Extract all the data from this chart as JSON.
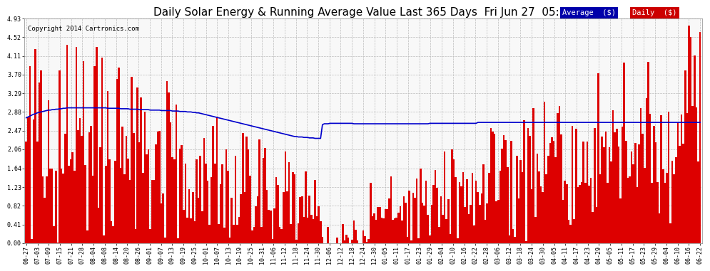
{
  "title": "Daily Solar Energy & Running Average Value Last 365 Days  Fri Jun 27  05:32",
  "copyright": "Copyright 2014 Cartronics.com",
  "legend_label_avg": "Average  ($)",
  "legend_label_daily": "Daily  ($)",
  "bar_color": "#dd0000",
  "avg_color": "#0000cc",
  "legend_avg_bg": "#0000aa",
  "legend_daily_bg": "#cc0000",
  "background_color": "#ffffff",
  "plot_bg_color": "#f8f8f8",
  "grid_color": "#bbbbbb",
  "ylim": [
    0.0,
    4.93
  ],
  "yticks": [
    0.0,
    0.41,
    0.82,
    1.23,
    1.64,
    2.06,
    2.47,
    2.88,
    3.29,
    3.7,
    4.11,
    4.52,
    4.93
  ],
  "xtick_labels": [
    "06-27",
    "07-03",
    "07-09",
    "07-15",
    "07-21",
    "07-28",
    "08-04",
    "08-08",
    "08-14",
    "08-20",
    "08-26",
    "09-01",
    "09-07",
    "09-13",
    "09-19",
    "09-25",
    "10-01",
    "10-07",
    "10-13",
    "10-19",
    "10-25",
    "10-31",
    "11-06",
    "11-12",
    "11-18",
    "11-24",
    "11-30",
    "12-06",
    "12-12",
    "12-18",
    "12-24",
    "12-30",
    "01-05",
    "01-11",
    "01-17",
    "01-23",
    "01-29",
    "02-04",
    "02-10",
    "02-16",
    "02-22",
    "02-28",
    "03-06",
    "03-12",
    "03-18",
    "03-24",
    "03-30",
    "04-05",
    "04-11",
    "04-17",
    "04-23",
    "04-29",
    "05-05",
    "05-11",
    "05-17",
    "05-23",
    "05-29",
    "06-04",
    "06-10",
    "06-16",
    "06-22"
  ],
  "num_days": 365,
  "title_fontsize": 11,
  "tick_fontsize": 6,
  "copyright_fontsize": 6.5,
  "legend_fontsize": 7.5,
  "avg_line": [
    2.75,
    2.77,
    2.79,
    2.81,
    2.83,
    2.84,
    2.86,
    2.87,
    2.88,
    2.89,
    2.9,
    2.91,
    2.92,
    2.92,
    2.93,
    2.93,
    2.94,
    2.94,
    2.95,
    2.95,
    2.96,
    2.96,
    2.97,
    2.97,
    2.97,
    2.97,
    2.97,
    2.97,
    2.97,
    2.97,
    2.97,
    2.97,
    2.97,
    2.97,
    2.97,
    2.97,
    2.97,
    2.97,
    2.97,
    2.97,
    2.97,
    2.97,
    2.97,
    2.97,
    2.96,
    2.96,
    2.96,
    2.96,
    2.96,
    2.96,
    2.96,
    2.95,
    2.95,
    2.95,
    2.95,
    2.95,
    2.94,
    2.94,
    2.94,
    2.94,
    2.94,
    2.93,
    2.93,
    2.93,
    2.93,
    2.93,
    2.93,
    2.92,
    2.92,
    2.92,
    2.92,
    2.92,
    2.92,
    2.91,
    2.91,
    2.91,
    2.91,
    2.91,
    2.91,
    2.9,
    2.9,
    2.9,
    2.9,
    2.89,
    2.89,
    2.89,
    2.89,
    2.88,
    2.88,
    2.88,
    2.87,
    2.87,
    2.86,
    2.86,
    2.85,
    2.84,
    2.83,
    2.82,
    2.81,
    2.8,
    2.79,
    2.78,
    2.77,
    2.76,
    2.75,
    2.74,
    2.73,
    2.72,
    2.71,
    2.7,
    2.69,
    2.68,
    2.67,
    2.66,
    2.65,
    2.64,
    2.63,
    2.62,
    2.61,
    2.6,
    2.59,
    2.58,
    2.57,
    2.56,
    2.55,
    2.54,
    2.53,
    2.52,
    2.51,
    2.5,
    2.49,
    2.48,
    2.47,
    2.46,
    2.45,
    2.44,
    2.43,
    2.42,
    2.41,
    2.4,
    2.39,
    2.38,
    2.37,
    2.36,
    2.35,
    2.34,
    2.34,
    2.33,
    2.33,
    2.33,
    2.32,
    2.32,
    2.32,
    2.31,
    2.31,
    2.31,
    2.3,
    2.3,
    2.3,
    2.3,
    2.6,
    2.62,
    2.62,
    2.62,
    2.63,
    2.63,
    2.63,
    2.63,
    2.63,
    2.63,
    2.63,
    2.63,
    2.63,
    2.63,
    2.63,
    2.63,
    2.63,
    2.62,
    2.62,
    2.62,
    2.62,
    2.62,
    2.62,
    2.62,
    2.62,
    2.62,
    2.62,
    2.62,
    2.62,
    2.62,
    2.62,
    2.62,
    2.62,
    2.62,
    2.62,
    2.62,
    2.62,
    2.62,
    2.62,
    2.62,
    2.62,
    2.62,
    2.62,
    2.62,
    2.62,
    2.62,
    2.62,
    2.62,
    2.62,
    2.62,
    2.62,
    2.62,
    2.62,
    2.62,
    2.62,
    2.62,
    2.62,
    2.62,
    2.63,
    2.63,
    2.63,
    2.63,
    2.63,
    2.63,
    2.63,
    2.63,
    2.63,
    2.63,
    2.63,
    2.63,
    2.63,
    2.63,
    2.63,
    2.63,
    2.63,
    2.63,
    2.63,
    2.63,
    2.63,
    2.63,
    2.63,
    2.63,
    2.63,
    2.63,
    2.65,
    2.65,
    2.65,
    2.65,
    2.65,
    2.65,
    2.65,
    2.65,
    2.65,
    2.65,
    2.65,
    2.65,
    2.65,
    2.65,
    2.65,
    2.65,
    2.65,
    2.65,
    2.65,
    2.65,
    2.65,
    2.65,
    2.65,
    2.65,
    2.65,
    2.65,
    2.65,
    2.65,
    2.65,
    2.65,
    2.65,
    2.65,
    2.65,
    2.65,
    2.65,
    2.65,
    2.65,
    2.65,
    2.65,
    2.65,
    2.65,
    2.65,
    2.65,
    2.65,
    2.65,
    2.65,
    2.65,
    2.65,
    2.65,
    2.65,
    2.65,
    2.65,
    2.65,
    2.65,
    2.65,
    2.65,
    2.65,
    2.65,
    2.65,
    2.65,
    2.65,
    2.65,
    2.65,
    2.65,
    2.65,
    2.65,
    2.65,
    2.65,
    2.65,
    2.65,
    2.65,
    2.65,
    2.65,
    2.65,
    2.65,
    2.65,
    2.65,
    2.65,
    2.65,
    2.65,
    2.65,
    2.65,
    2.65,
    2.65,
    2.65,
    2.65,
    2.65,
    2.65,
    2.65,
    2.65,
    2.65,
    2.65,
    2.65,
    2.65,
    2.65,
    2.65,
    2.65,
    2.65,
    2.65,
    2.65,
    2.65,
    2.65,
    2.65,
    2.65,
    2.65,
    2.65,
    2.65,
    2.65,
    2.65,
    2.65,
    2.65,
    2.65,
    2.65,
    2.65,
    2.65,
    2.65,
    2.65,
    2.65,
    2.65,
    2.65,
    2.65
  ]
}
